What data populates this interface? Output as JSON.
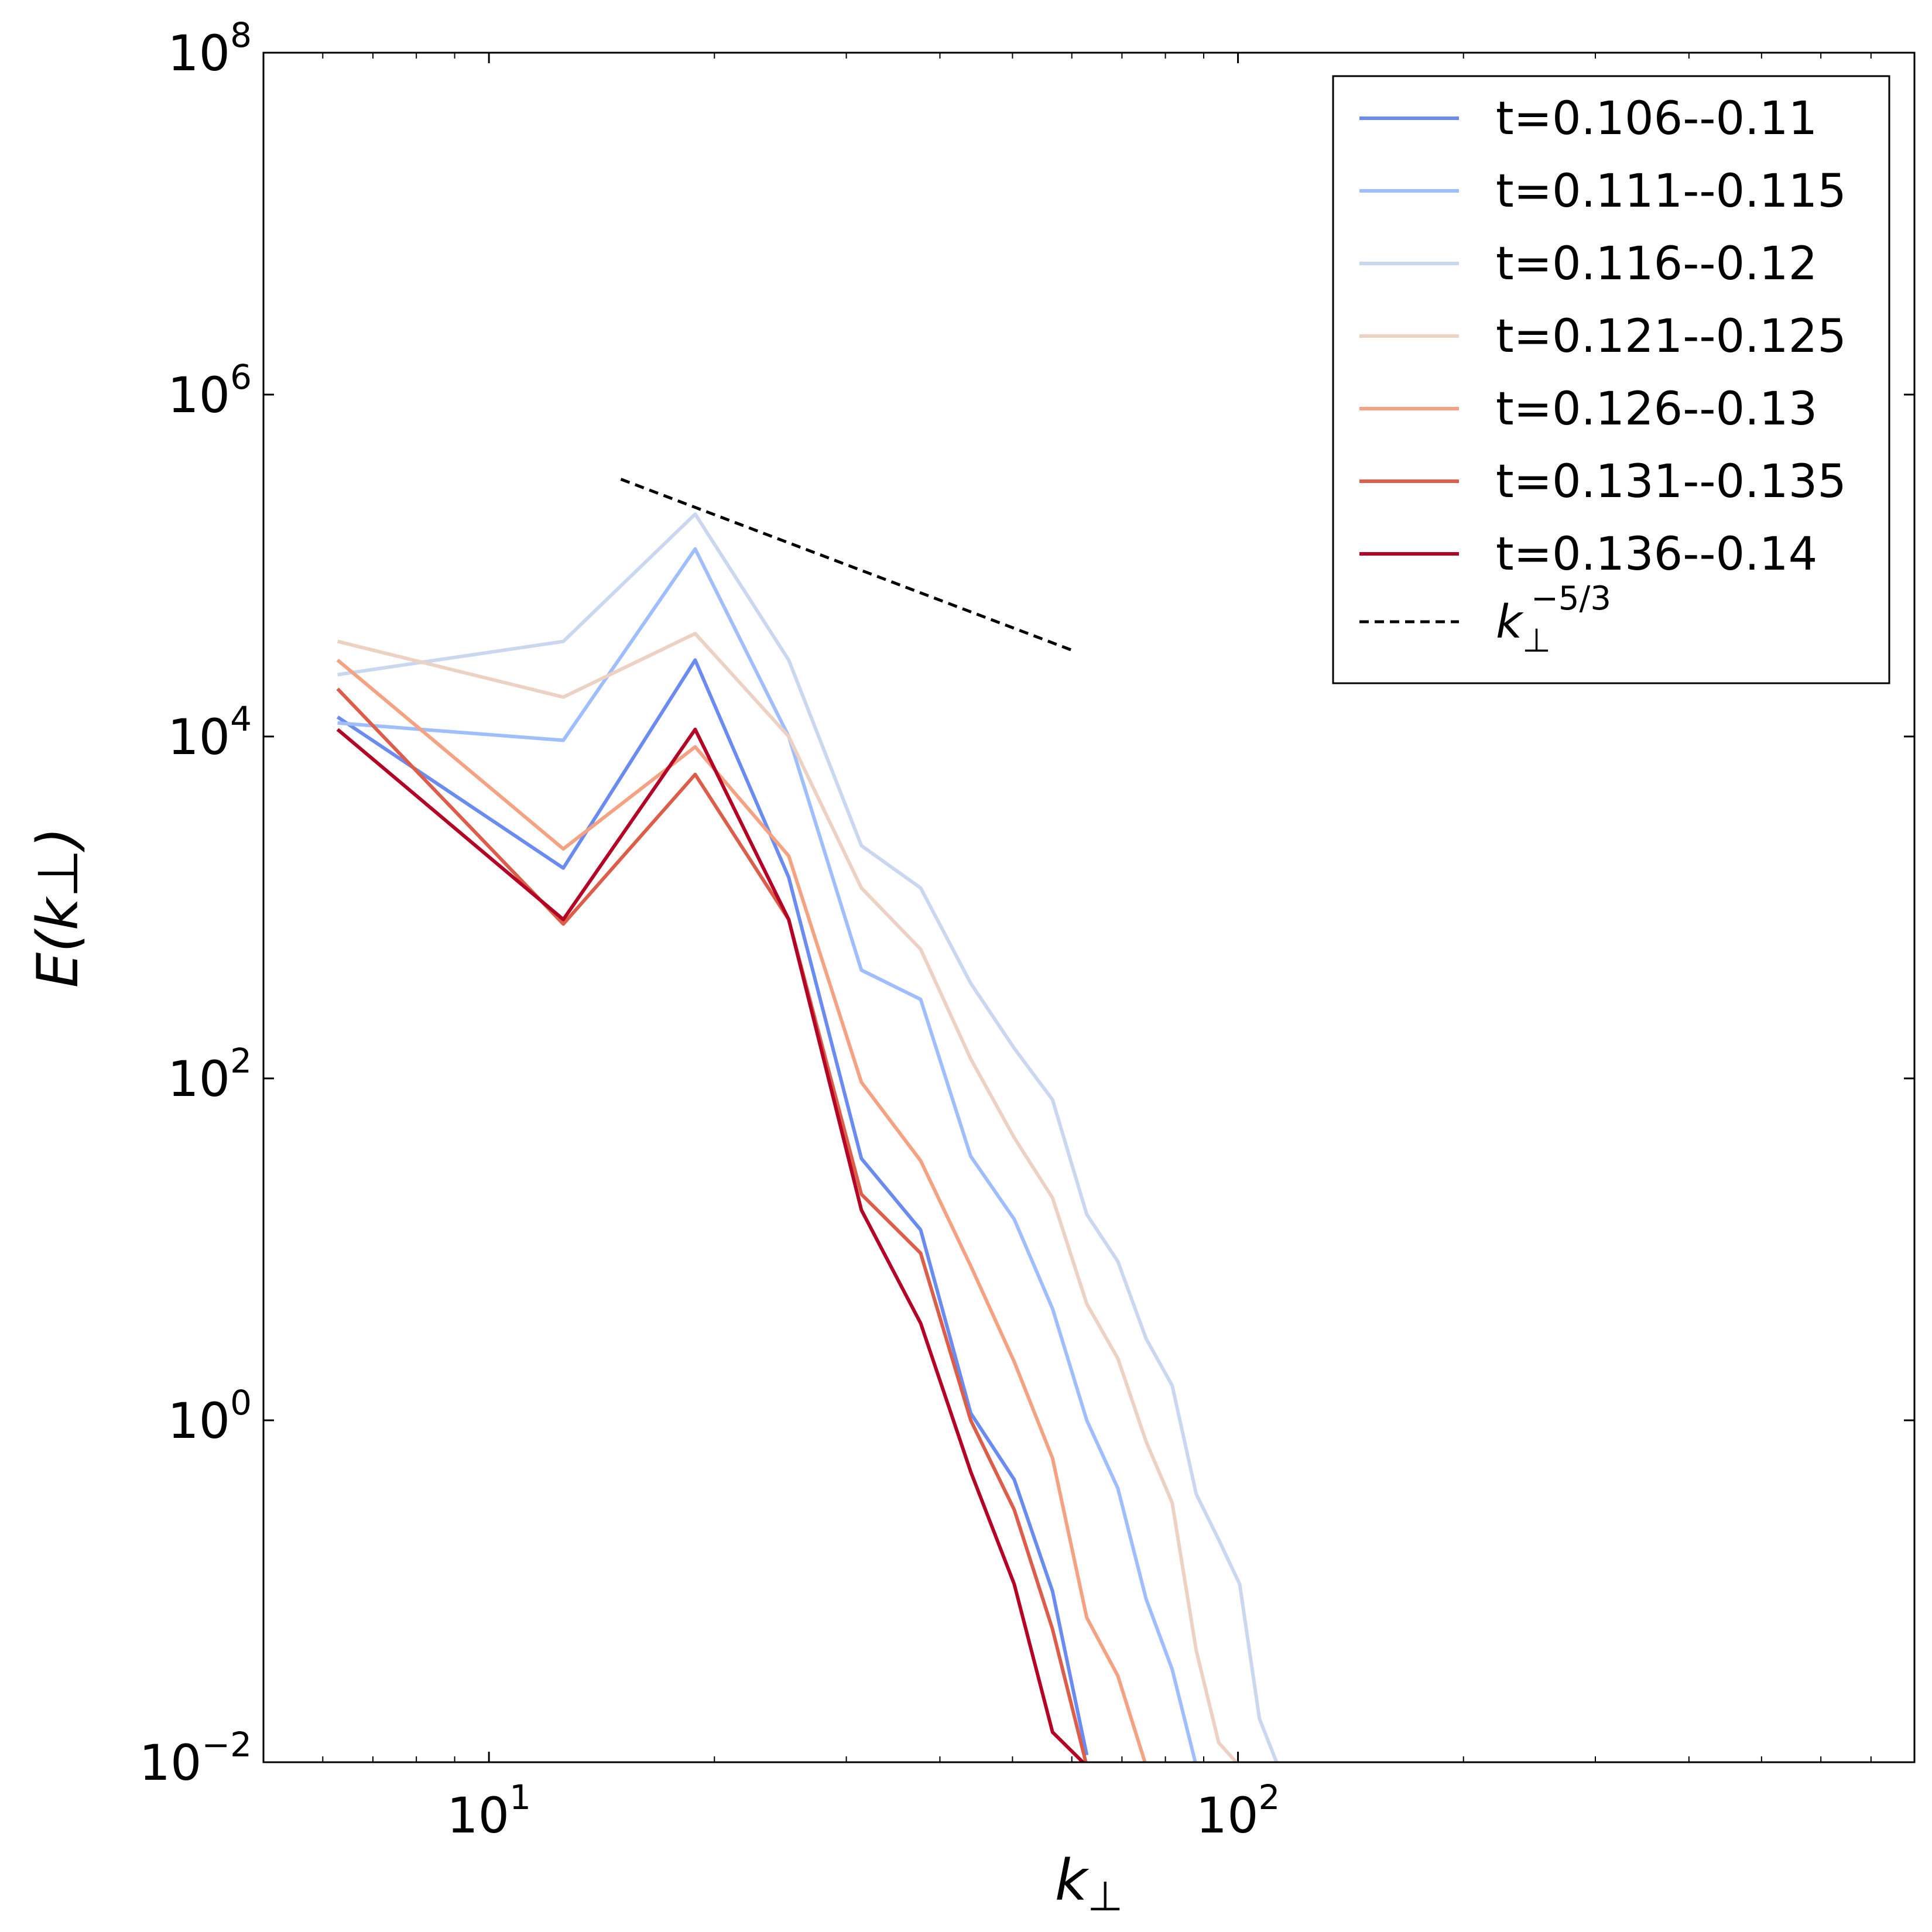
{
  "chart_data": {
    "type": "line",
    "xlabel": "k⊥",
    "ylabel": "E(k⊥)",
    "xscale": "log",
    "yscale": "log",
    "xlim": [
      5,
      800
    ],
    "ylim": [
      0.01,
      100000000
    ],
    "x_tick_labels": [
      {
        "value": 10,
        "base": "10",
        "exp": "1"
      },
      {
        "value": 100,
        "base": "10",
        "exp": "2"
      }
    ],
    "y_tick_labels": [
      {
        "value": 0.01,
        "base": "10",
        "exp": "−2"
      },
      {
        "value": 1,
        "base": "10",
        "exp": "0"
      },
      {
        "value": 100,
        "base": "10",
        "exp": "2"
      },
      {
        "value": 10000,
        "base": "10",
        "exp": "4"
      },
      {
        "value": 1000000,
        "base": "10",
        "exp": "6"
      },
      {
        "value": 100000000,
        "base": "10",
        "exp": "8"
      }
    ],
    "grid": false,
    "legend_position": "top-right",
    "x": [
      6.28,
      12.57,
      18.85,
      25.13,
      31.42,
      37.7,
      43.98,
      50.27,
      56.55,
      62.83,
      69.12,
      75.4,
      81.68,
      87.96,
      94.25,
      100.53,
      106.81,
      113.1
    ],
    "series": [
      {
        "name": "t=0.106--0.11",
        "color": "#6a8bef",
        "style": "solid",
        "values": [
          13000,
          1700,
          28000,
          1500,
          34,
          13,
          1.1,
          0.45,
          0.1,
          0.011,
          null,
          null,
          null,
          null,
          null,
          null,
          null,
          null
        ]
      },
      {
        "name": "t=0.111--0.115",
        "color": "#9ebeff",
        "style": "solid",
        "values": [
          12000,
          9500,
          125000,
          10000,
          430,
          290,
          35,
          15,
          4.5,
          1.0,
          0.4,
          0.09,
          0.035,
          0.0095,
          null,
          null,
          null,
          null
        ]
      },
      {
        "name": "t=0.116--0.12",
        "color": "#c9d7f0",
        "style": "solid",
        "values": [
          23000,
          36000,
          200000,
          28000,
          2300,
          1300,
          360,
          150,
          75,
          16,
          8.5,
          3.0,
          1.6,
          0.37,
          0.2,
          0.11,
          0.018,
          0.0095
        ]
      },
      {
        "name": "t=0.121--0.125",
        "color": "#edd1c2",
        "style": "solid",
        "values": [
          36000,
          17000,
          40000,
          10000,
          1300,
          570,
          130,
          45,
          20,
          4.8,
          2.3,
          0.75,
          0.33,
          0.045,
          0.013,
          0.0095,
          null,
          null
        ]
      },
      {
        "name": "t=0.126--0.13",
        "color": "#f4a282",
        "style": "solid",
        "values": [
          28000,
          2200,
          8700,
          2000,
          95,
          33,
          8.0,
          2.2,
          0.6,
          0.07,
          0.032,
          0.0095,
          null,
          null,
          null,
          null,
          null,
          null
        ]
      },
      {
        "name": "t=0.131--0.135",
        "color": "#dc5d4a",
        "style": "solid",
        "values": [
          19000,
          800,
          6000,
          850,
          21,
          9.5,
          1.0,
          0.3,
          0.06,
          0.0095,
          null,
          null,
          null,
          null,
          null,
          null,
          null,
          null
        ]
      },
      {
        "name": "t=0.136--0.14",
        "color": "#b40426",
        "style": "solid",
        "values": [
          11000,
          850,
          11000,
          850,
          17,
          3.7,
          0.5,
          0.11,
          0.015,
          0.0095,
          null,
          null,
          null,
          null,
          null,
          null,
          null,
          null
        ]
      }
    ],
    "reference_line": {
      "name": "k⊥^−5/3",
      "label_base": "k",
      "label_sub": "⊥",
      "label_sup": "−5/3",
      "color": "#000000",
      "style": "dashed",
      "x": [
        15.0,
        60.0
      ],
      "y": [
        320000,
        32000
      ]
    }
  }
}
